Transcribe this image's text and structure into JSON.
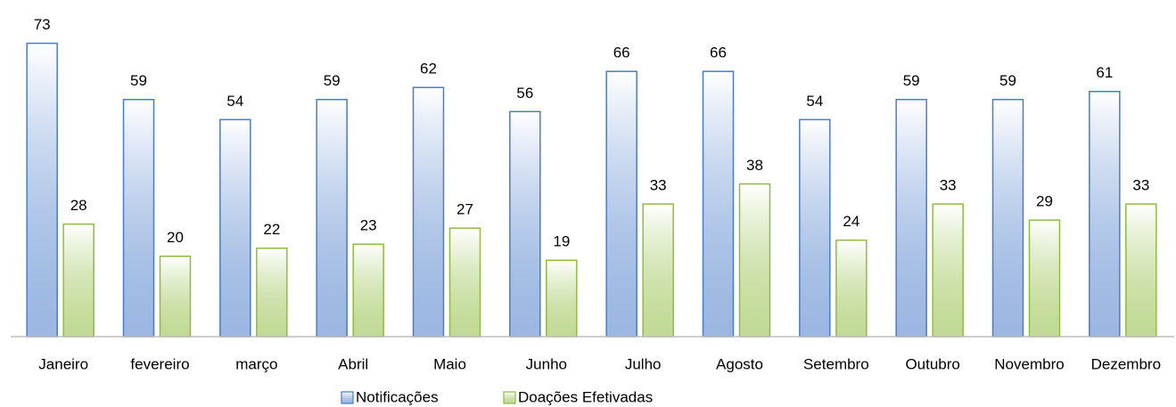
{
  "chart_data": {
    "type": "bar",
    "categories": [
      "Janeiro",
      "fevereiro",
      "março",
      "Abril",
      "Maio",
      "Junho",
      "Julho",
      "Agosto",
      "Setembro",
      "Outubro",
      "Novembro",
      "Dezembro"
    ],
    "series": [
      {
        "name": "Notificações",
        "color": "#4a7cc9",
        "values": [
          73,
          59,
          54,
          59,
          62,
          56,
          66,
          66,
          54,
          59,
          59,
          61
        ]
      },
      {
        "name": "Doações Efetivadas",
        "color": "#8fbc40",
        "values": [
          28,
          20,
          22,
          23,
          27,
          19,
          33,
          38,
          24,
          33,
          29,
          33
        ]
      }
    ],
    "ylim": [
      0,
      80
    ],
    "grid": false,
    "legend": "bottom"
  }
}
